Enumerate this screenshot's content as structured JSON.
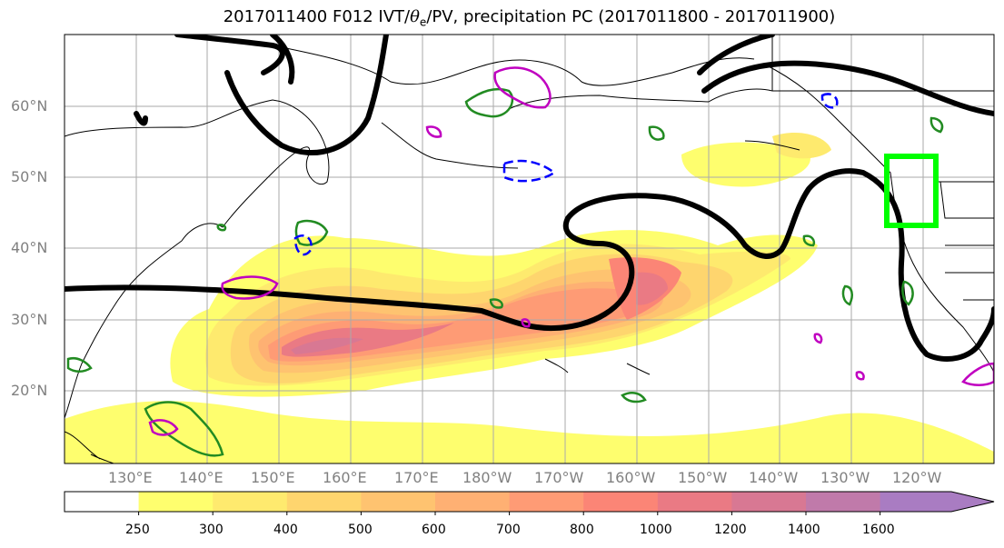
{
  "title": {
    "prefix": "2017011400 F012 IVT/",
    "theta_symbol": "θ",
    "theta_sub": "e",
    "suffix": "/PV, precipitation PC (2017011800 - 2017011900)"
  },
  "map": {
    "lat_labels": [
      "60°N",
      "50°N",
      "40°N",
      "30°N",
      "20°N"
    ],
    "lon_labels": [
      "130°E",
      "140°E",
      "150°E",
      "160°E",
      "170°E",
      "180°W",
      "170°W",
      "160°W",
      "150°W",
      "140°W",
      "130°W",
      "120°W"
    ],
    "colors": {
      "pv_contour": "#000000",
      "theta_e_contour": "#228B22",
      "ivt_negative_contour": "#0000ff",
      "ivt_positive_contour": "#c000c0",
      "target_box": "#00ff00"
    }
  },
  "colorbar": {
    "tick_labels": [
      "250",
      "300",
      "400",
      "500",
      "600",
      "700",
      "800",
      "1000",
      "1200",
      "1400",
      "1600"
    ],
    "colors": [
      "#ffffff",
      "#fefe6e",
      "#feea6e",
      "#fed56e",
      "#fec370",
      "#feb073",
      "#fe9b75",
      "#fb8576",
      "#ea7a84",
      "#d87893",
      "#c07aaa",
      "#a97cc2"
    ]
  }
}
